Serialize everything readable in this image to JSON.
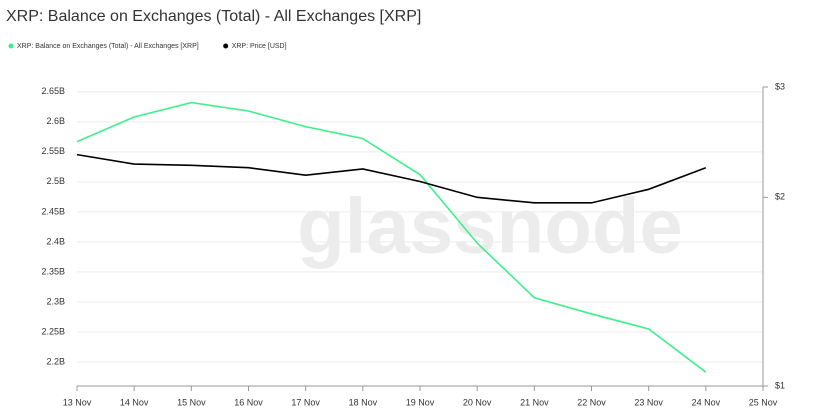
{
  "chart_data": {
    "type": "line",
    "title": "XRP: Balance on Exchanges (Total) - All Exchanges [XRP]",
    "watermark": "glassnode",
    "categories": [
      "13 Nov",
      "14 Nov",
      "15 Nov",
      "16 Nov",
      "17 Nov",
      "18 Nov",
      "19 Nov",
      "20 Nov",
      "21 Nov",
      "22 Nov",
      "23 Nov",
      "24 Nov",
      "25 Nov"
    ],
    "series": [
      {
        "name": "XRP: Balance on Exchanges (Total) - All Exchanges [XRP]",
        "color": "#3ef08a",
        "values": [
          2.567,
          2.608,
          2.632,
          2.618,
          2.592,
          2.572,
          2.512,
          2.398,
          2.307,
          2.28,
          2.255,
          2.183,
          null
        ]
      },
      {
        "name": "XRP: Price [USD]",
        "color": "#000000",
        "axis": "y2",
        "values": [
          2.34,
          2.26,
          2.25,
          2.23,
          2.17,
          2.22,
          2.12,
          2.0,
          1.96,
          1.96,
          2.06,
          2.23,
          null
        ]
      }
    ],
    "ylim": [
      2.16,
      2.658
    ],
    "yticks": [
      {
        "value": 2.2,
        "label": "2.2B"
      },
      {
        "value": 2.25,
        "label": "2.25B"
      },
      {
        "value": 2.3,
        "label": "2.3B"
      },
      {
        "value": 2.35,
        "label": "2.35B"
      },
      {
        "value": 2.4,
        "label": "2.4B"
      },
      {
        "value": 2.45,
        "label": "2.45B"
      },
      {
        "value": 2.5,
        "label": "2.5B"
      },
      {
        "value": 2.55,
        "label": "2.55B"
      },
      {
        "value": 2.6,
        "label": "2.6B"
      },
      {
        "value": 2.65,
        "label": "2.65B"
      }
    ],
    "y2lim": [
      1,
      3
    ],
    "y2ticks": [
      {
        "value": 1,
        "label": "$1"
      },
      {
        "value": 2,
        "label": "$2"
      },
      {
        "value": 3,
        "label": "$3"
      }
    ],
    "y2_log": true,
    "grid": true
  }
}
